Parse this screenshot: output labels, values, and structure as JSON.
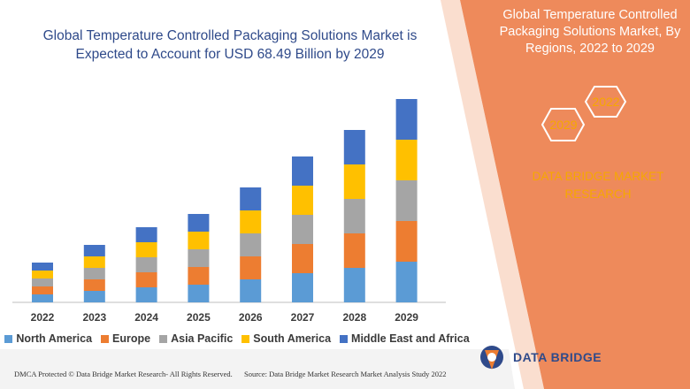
{
  "header": {
    "title": "Global Temperature Controlled Packaging Solutions Market is Expected to Account for USD 68.49 Billion by 2029"
  },
  "right_panel": {
    "title": "Global Temperature Controlled Packaging Solutions Market, By Regions, 2022 to 2029",
    "year_start": "2022",
    "year_end": "2029",
    "brand": "DATA BRIDGE MARKET RESEARCH"
  },
  "footer": {
    "dmca": "DMCA Protected © Data Bridge Market Research- All Rights Reserved.",
    "source": "Source: Data Bridge Market Research Market Analysis Study 2022"
  },
  "logo": {
    "name": "DATA BRIDGE",
    "icon": "data-bridge-logo-icon"
  },
  "colors": {
    "panel": "#ee8a5b",
    "accent": "#f6a800",
    "title": "#2f4a8a"
  },
  "chart_data": {
    "type": "bar",
    "stacked": true,
    "categories": [
      "2022",
      "2023",
      "2024",
      "2025",
      "2026",
      "2027",
      "2028",
      "2029"
    ],
    "series": [
      {
        "name": "North America",
        "color": "#5b9bd5",
        "values": [
          9,
          13,
          17,
          20,
          26,
          33,
          39,
          46
        ]
      },
      {
        "name": "Europe",
        "color": "#ed7d31",
        "values": [
          9,
          13,
          17,
          20,
          26,
          33,
          39,
          46
        ]
      },
      {
        "name": "Asia Pacific",
        "color": "#a5a5a5",
        "values": [
          9,
          13,
          17,
          20,
          26,
          33,
          39,
          46
        ]
      },
      {
        "name": "South America",
        "color": "#ffc000",
        "values": [
          9,
          13,
          17,
          20,
          26,
          33,
          39,
          46
        ]
      },
      {
        "name": "Middle East and Africa",
        "color": "#4472c4",
        "values": [
          9,
          13,
          17,
          20,
          26,
          33,
          39,
          46
        ]
      }
    ],
    "ylim": [
      0,
      240
    ],
    "grid": false,
    "legend": "bottom"
  }
}
